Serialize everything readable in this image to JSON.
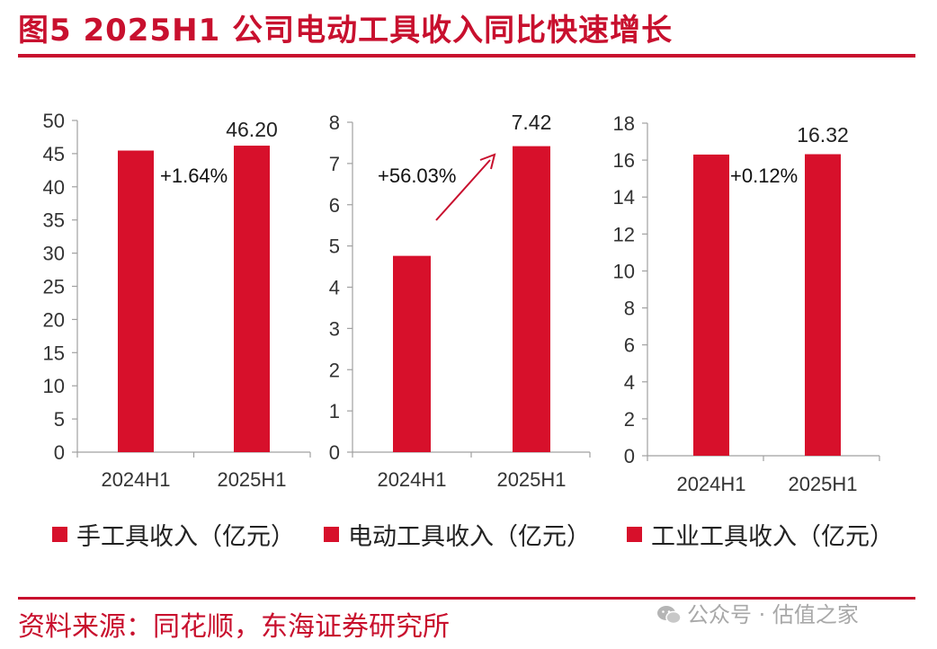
{
  "title": "图5  2025H1 公司电动工具收入同比快速增长",
  "source": "资料来源：同花顺，东海证券研究所",
  "watermark": "公众号 · 估值之家",
  "colors": {
    "accent": "#c8102e",
    "bar": "#d7102b",
    "axis": "#a0a0a0"
  },
  "chart_data": [
    {
      "type": "bar",
      "categories": [
        "2024H1",
        "2025H1"
      ],
      "series": [
        {
          "name": "手工具收入（亿元）",
          "values": [
            45.46,
            46.2
          ]
        }
      ],
      "ylim": [
        0,
        50
      ],
      "yticks": [
        0,
        5,
        10,
        15,
        20,
        25,
        30,
        35,
        40,
        45,
        50
      ],
      "data_labels": [
        "",
        "46.20"
      ],
      "annotation": "+1.64%",
      "legend": "bottom"
    },
    {
      "type": "bar",
      "categories": [
        "2024H1",
        "2025H1"
      ],
      "series": [
        {
          "name": "电动工具收入（亿元）",
          "values": [
            4.76,
            7.42
          ]
        }
      ],
      "ylim": [
        0,
        8
      ],
      "yticks": [
        0,
        1,
        2,
        3,
        4,
        5,
        6,
        7,
        8
      ],
      "data_labels": [
        "",
        "7.42"
      ],
      "annotation": "+56.03%",
      "legend": "bottom"
    },
    {
      "type": "bar",
      "categories": [
        "2024H1",
        "2025H1"
      ],
      "series": [
        {
          "name": "工业工具收入（亿元）",
          "values": [
            16.3,
            16.32
          ]
        }
      ],
      "ylim": [
        0,
        18
      ],
      "yticks": [
        0,
        2,
        4,
        6,
        8,
        10,
        12,
        14,
        16,
        18
      ],
      "data_labels": [
        "",
        "16.32"
      ],
      "annotation": "+0.12%",
      "legend": "bottom"
    }
  ]
}
